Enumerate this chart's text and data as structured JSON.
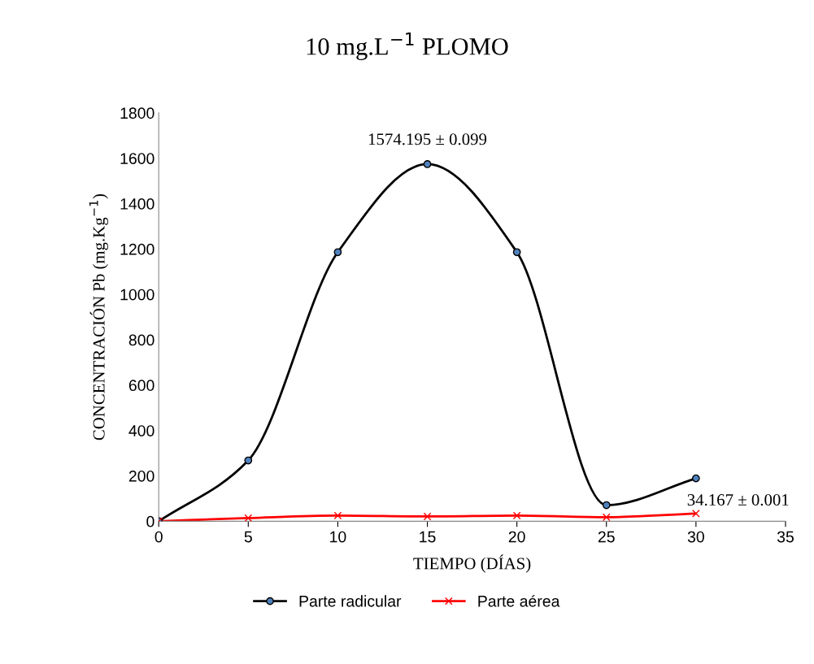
{
  "chart_data": {
    "type": "line",
    "title": "10 mg.L$^{−1}$ PLOMO",
    "xlabel": "TIEMPO (DÍAS)",
    "ylabel": "CONCENTRACIÓN Pb (mg.Kg$^{−1}$)",
    "x": [
      0,
      5,
      10,
      15,
      20,
      25,
      30
    ],
    "series": [
      {
        "name": "Parte radicular",
        "color": "#000000",
        "marker": "circle",
        "values": [
          0,
          268,
          1186,
          1574,
          1186,
          71,
          189
        ]
      },
      {
        "name": "Parte aérea",
        "color": "#ff0000",
        "marker": "cross",
        "values": [
          0,
          14,
          25,
          21,
          25,
          18,
          34
        ]
      }
    ],
    "annotations": [
      {
        "text": "1574.195 ± 0.099",
        "x": 15,
        "y": 1574
      },
      {
        "text": "34.167 ± 0.001",
        "x": 30,
        "y": 34
      }
    ],
    "xlim": [
      0,
      35
    ],
    "xticks": [
      0,
      5,
      10,
      15,
      20,
      25,
      30,
      35
    ],
    "ylim": [
      0,
      1800
    ],
    "yticks": [
      0,
      200,
      400,
      600,
      800,
      1000,
      1200,
      1400,
      1600,
      1800
    ],
    "grid": false,
    "legend": "bottom",
    "line_style": "solid"
  }
}
